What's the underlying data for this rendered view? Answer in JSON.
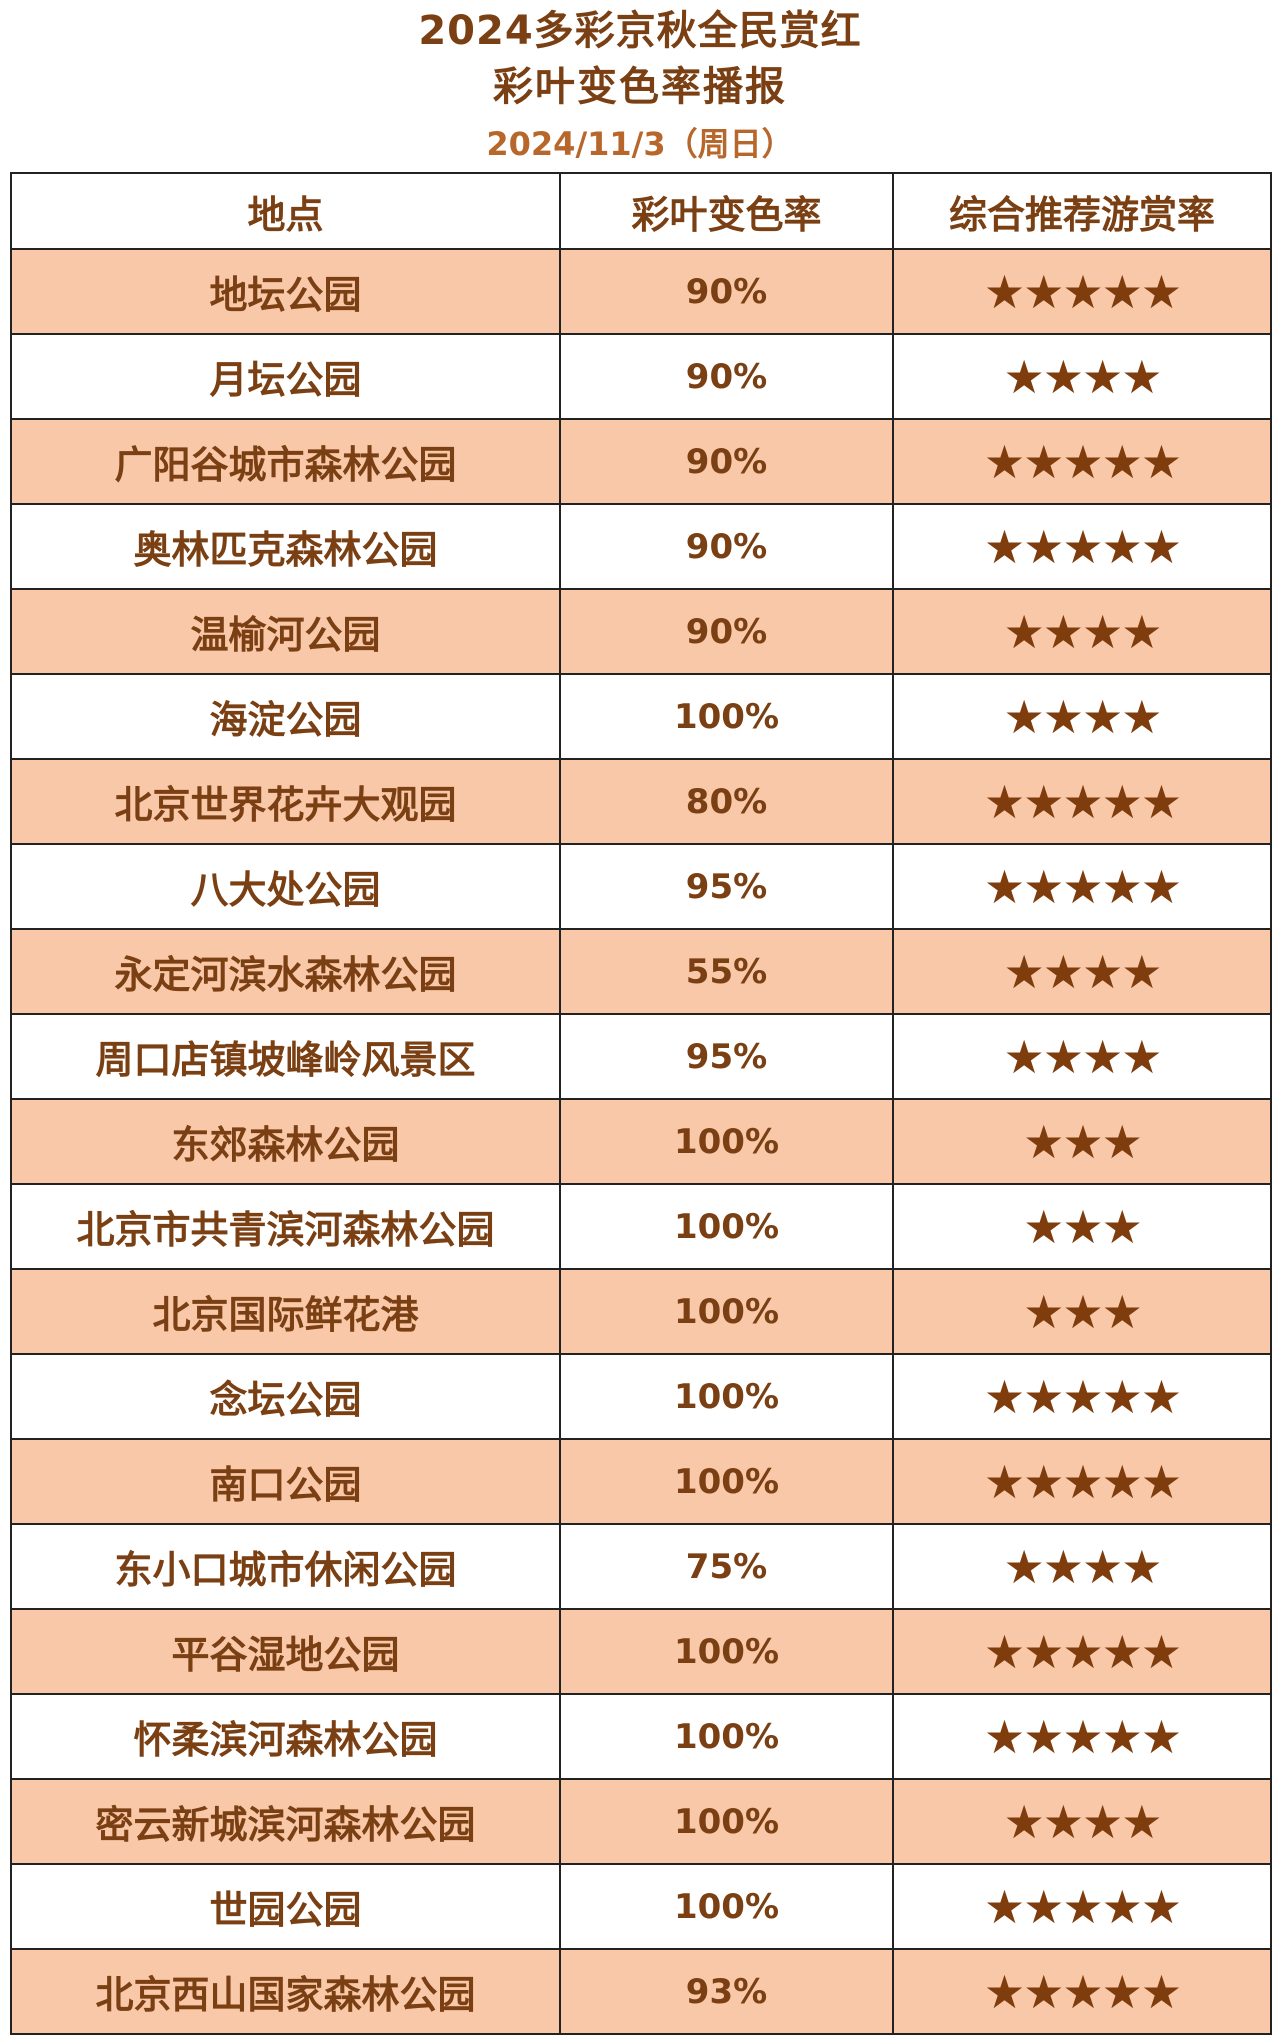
{
  "header": {
    "title_line1": "2024多彩京秋全民赏红",
    "title_line2": "彩叶变色率播报",
    "date": "2024/11/3（周日）"
  },
  "colors": {
    "text": "#7a3f12",
    "row_highlight": "#f8c8a8",
    "star": "#7f3c0c"
  },
  "table": {
    "columns": [
      "地点",
      "彩叶变色率",
      "综合推荐游赏率"
    ],
    "rows": [
      {
        "place": "地坛公园",
        "rate": "90%",
        "stars": "★★★★★",
        "star_count": 5
      },
      {
        "place": "月坛公园",
        "rate": "90%",
        "stars": "★★★★",
        "star_count": 4
      },
      {
        "place": "广阳谷城市森林公园",
        "rate": "90%",
        "stars": "★★★★★",
        "star_count": 5
      },
      {
        "place": "奥林匹克森林公园",
        "rate": "90%",
        "stars": "★★★★★",
        "star_count": 5
      },
      {
        "place": "温榆河公园",
        "rate": "90%",
        "stars": "★★★★",
        "star_count": 4
      },
      {
        "place": "海淀公园",
        "rate": "100%",
        "stars": "★★★★",
        "star_count": 4
      },
      {
        "place": "北京世界花卉大观园",
        "rate": "80%",
        "stars": "★★★★★",
        "star_count": 5
      },
      {
        "place": "八大处公园",
        "rate": "95%",
        "stars": "★★★★★",
        "star_count": 5
      },
      {
        "place": "永定河滨水森林公园",
        "rate": "55%",
        "stars": "★★★★",
        "star_count": 4
      },
      {
        "place": "周口店镇坡峰岭风景区",
        "rate": "95%",
        "stars": "★★★★",
        "star_count": 4
      },
      {
        "place": "东郊森林公园",
        "rate": "100%",
        "stars": "★★★",
        "star_count": 3
      },
      {
        "place": "北京市共青滨河森林公园",
        "rate": "100%",
        "stars": "★★★",
        "star_count": 3
      },
      {
        "place": "北京国际鲜花港",
        "rate": "100%",
        "stars": "★★★",
        "star_count": 3
      },
      {
        "place": "念坛公园",
        "rate": "100%",
        "stars": "★★★★★",
        "star_count": 5
      },
      {
        "place": "南口公园",
        "rate": "100%",
        "stars": "★★★★★",
        "star_count": 5
      },
      {
        "place": "东小口城市休闲公园",
        "rate": "75%",
        "stars": "★★★★",
        "star_count": 4
      },
      {
        "place": "平谷湿地公园",
        "rate": "100%",
        "stars": "★★★★★",
        "star_count": 5
      },
      {
        "place": "怀柔滨河森林公园",
        "rate": "100%",
        "stars": "★★★★★",
        "star_count": 5
      },
      {
        "place": "密云新城滨河森林公园",
        "rate": "100%",
        "stars": "★★★★",
        "star_count": 4
      },
      {
        "place": "世园公园",
        "rate": "100%",
        "stars": "★★★★★",
        "star_count": 5
      },
      {
        "place": "北京西山国家森林公园",
        "rate": "93%",
        "stars": "★★★★★",
        "star_count": 5
      }
    ]
  }
}
